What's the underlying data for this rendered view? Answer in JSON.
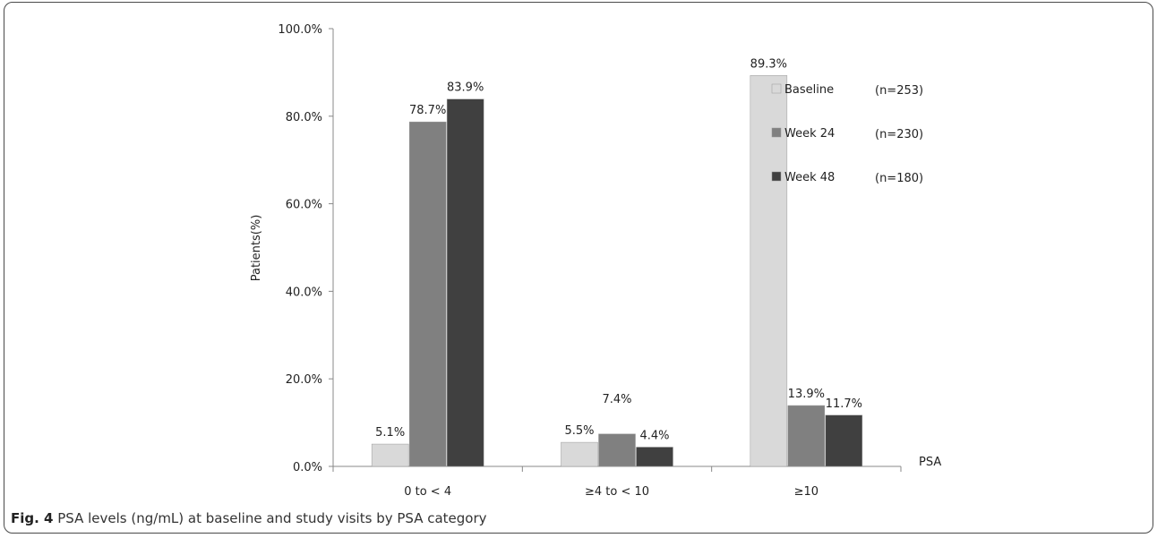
{
  "chart_data": {
    "type": "bar",
    "categories": [
      "0 to  < 4",
      "≥4 to  < 10",
      "≥10"
    ],
    "series": [
      {
        "name": "Baseline",
        "n_label": "(n=253)",
        "color": "#d9d9d9",
        "values": [
          5.1,
          5.5,
          89.3
        ],
        "labels": [
          "5.1%",
          "5.5%",
          "89.3%"
        ]
      },
      {
        "name": "Week 24",
        "n_label": "(n=230)",
        "color": "#808080",
        "values": [
          78.7,
          7.4,
          13.9
        ],
        "labels": [
          "78.7%",
          "7.4%",
          "13.9%"
        ]
      },
      {
        "name": "Week 48",
        "n_label": "(n=180)",
        "color": "#404040",
        "values": [
          83.9,
          4.4,
          11.7
        ],
        "labels": [
          "83.9%",
          "4.4%",
          "11.7%"
        ]
      }
    ],
    "ylabel": "Patients(%)",
    "xlabel": "PSA",
    "ylim": [
      0,
      100
    ],
    "yticks": [
      0,
      20,
      40,
      60,
      80,
      100
    ],
    "ytick_labels": [
      "0.0%",
      "20.0%",
      "40.0%",
      "60.0%",
      "80.0%",
      "100.0%"
    ],
    "grid": false,
    "legend_position": "top-right"
  },
  "caption": {
    "label": "Fig. 4",
    "text": " PSA levels (ng/mL) at baseline and study visits by PSA category"
  }
}
